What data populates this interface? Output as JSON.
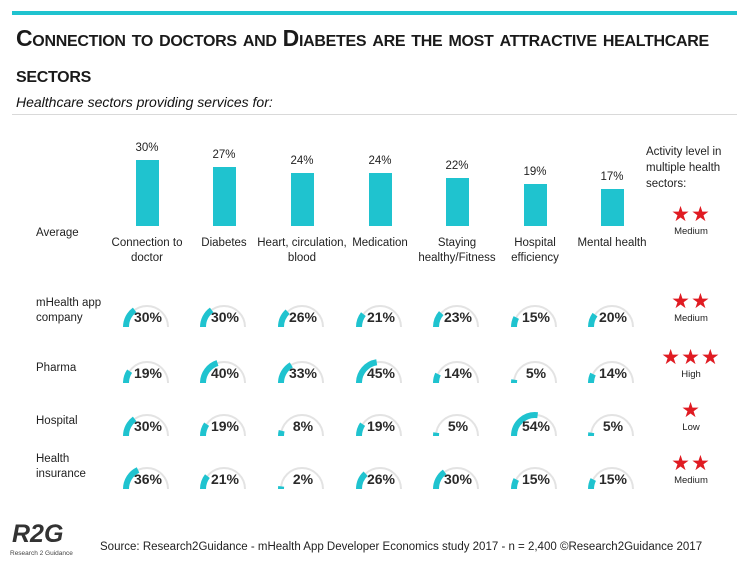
{
  "title": "Connection to doctors and Diabetes are the most attractive healthcare sectors",
  "subtitle": "Healthcare sectors providing services for:",
  "activity_header": "Activity level in multiple health sectors:",
  "source": "Source: Research2Guidance - mHealth App Developer Economics study 2017 - n = 2,400",
  "copyright": "©Research2Guidance 2017",
  "logo": {
    "text": "R2G",
    "sub": "Research 2 Guidance"
  },
  "colors": {
    "accent": "#1fc3cf",
    "star": "#e01b22",
    "track": "#e3e3e3"
  },
  "chart_data": {
    "type": "bar",
    "categories": [
      "Connection to doctor",
      "Diabetes",
      "Heart, circulation, blood",
      "Medication",
      "Staying healthy/Fitness",
      "Hospital efficiency",
      "Mental health"
    ],
    "average": {
      "label": "Average",
      "values": [
        30,
        27,
        24,
        24,
        22,
        19,
        17
      ],
      "labels": [
        "30%",
        "27%",
        "24%",
        "24%",
        "22%",
        "19%",
        "17%"
      ],
      "activity": {
        "stars": "★★",
        "level": "Medium"
      }
    },
    "series": [
      {
        "name": "mHealth app company",
        "values": [
          30,
          30,
          26,
          21,
          23,
          15,
          20
        ],
        "labels": [
          "30%",
          "30%",
          "26%",
          "21%",
          "23%",
          "15%",
          "20%"
        ],
        "activity": {
          "stars": "★★",
          "level": "Medium"
        }
      },
      {
        "name": "Pharma",
        "values": [
          19,
          40,
          33,
          45,
          14,
          5,
          14
        ],
        "labels": [
          "19%",
          "40%",
          "33%",
          "45%",
          "14%",
          "5%",
          "14%"
        ],
        "activity": {
          "stars": "★★★",
          "level": "High"
        }
      },
      {
        "name": "Hospital",
        "values": [
          30,
          19,
          8,
          19,
          5,
          54,
          5
        ],
        "labels": [
          "30%",
          "19%",
          "8%",
          "19%",
          "5%",
          "54%",
          "5%"
        ],
        "activity": {
          "stars": "★",
          "level": "Low"
        }
      },
      {
        "name": "Health insurance",
        "values": [
          36,
          21,
          2,
          26,
          30,
          15,
          15
        ],
        "labels": [
          "36%",
          "21%",
          "2%",
          "26%",
          "30%",
          "15%",
          "15%"
        ],
        "activity": {
          "stars": "★★",
          "level": "Medium"
        }
      }
    ]
  }
}
